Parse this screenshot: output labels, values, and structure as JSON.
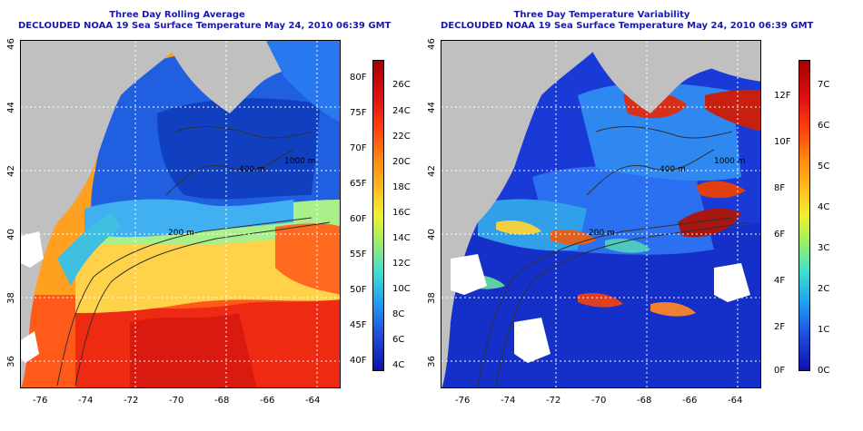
{
  "left": {
    "title_line1": "Three Day Rolling Average",
    "title_line2": "DECLOUDED NOAA 19 Sea Surface Temperature May 24, 2010 06:39 GMT",
    "colorbar_left_labels": [
      "80F",
      "75F",
      "70F",
      "65F",
      "60F",
      "55F",
      "50F",
      "45F",
      "40F"
    ],
    "colorbar_right_labels": [
      "26C",
      "24C",
      "22C",
      "20C",
      "18C",
      "16C",
      "14C",
      "12C",
      "10C",
      "8C",
      "6C",
      "4C"
    ],
    "contour_labels": [
      "200 m",
      "400 m",
      "1000 m",
      "200 m",
      "200 m",
      "200 m"
    ]
  },
  "right": {
    "title_line1": "Three Day Temperature Variability",
    "title_line2": "DECLOUDED NOAA 19 Sea Surface Temperature May 24, 2010 06:39 GMT",
    "colorbar_left_labels": [
      "12F",
      "10F",
      "8F",
      "6F",
      "4F",
      "2F",
      "0F"
    ],
    "colorbar_right_labels": [
      "7C",
      "6C",
      "5C",
      "4C",
      "3C",
      "2C",
      "1C",
      "0C"
    ],
    "contour_labels": [
      "200 m",
      "400 m",
      "1000 m",
      "200 m",
      "200 m"
    ]
  },
  "y_axis_labels": [
    "46",
    "44",
    "42",
    "40",
    "38",
    "36"
  ],
  "x_axis_labels": [
    "-76",
    "-74",
    "-72",
    "-70",
    "-68",
    "-66",
    "-64"
  ],
  "colors": {
    "land": "#c0c0c0",
    "title": "#1a1aa8"
  }
}
